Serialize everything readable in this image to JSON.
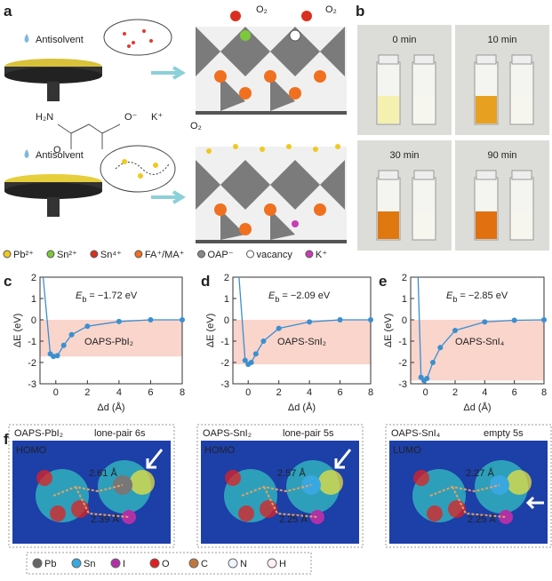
{
  "panels": [
    "a",
    "b",
    "c",
    "d",
    "e",
    "f"
  ],
  "panel_a": {
    "antisolvent_top": "Antisolvent",
    "antisolvent_bottom": "Antisolvent",
    "h2n": "H₂N",
    "o": "O",
    "o_minus": "O⁻",
    "k_plus": "K⁺",
    "o2_1": "O₂",
    "o2_2": "O₂",
    "o2_3": "O₂",
    "legend": [
      "Pb²⁺",
      "Sn²⁺",
      "Sn⁴⁺",
      "FA⁺/MA⁺",
      "OAP⁻",
      "vacancy",
      "K⁺"
    ]
  },
  "panel_b": {
    "times": [
      "0 min",
      "10 min",
      "30 min",
      "90 min"
    ]
  },
  "chart_data": [
    {
      "type": "line",
      "xlabel": "Δd (Å)",
      "ylabel": "ΔE (eV)",
      "eb_symbol": "E",
      "eb_subscript": "b",
      "eb_text": "= −1.72 eV",
      "eb": -1.72,
      "curve_label": "OAPS-PbI₂",
      "x": [
        -0.8,
        -0.35,
        -0.15,
        0.1,
        0.5,
        1,
        2,
        4,
        6,
        8
      ],
      "values": [
        2,
        -1.6,
        -1.72,
        -1.68,
        -1.2,
        -0.7,
        -0.3,
        -0.08,
        0,
        0
      ],
      "color": "#3a8fd0",
      "xlim": [
        -1,
        8
      ],
      "xticks": [
        0,
        2,
        4,
        6,
        8
      ],
      "ylim": [
        -3,
        2
      ],
      "yticks": [
        -3,
        -2,
        -1,
        0,
        1,
        2
      ]
    },
    {
      "type": "line",
      "xlabel": "Δd (Å)",
      "ylabel": "ΔE (eV)",
      "eb_symbol": "E",
      "eb_subscript": "b",
      "eb_text": "= −2.09 eV",
      "eb": -2.09,
      "curve_label": "OAPS-SnI₂",
      "x": [
        -0.6,
        -0.2,
        0,
        0.2,
        0.5,
        1,
        2,
        4,
        6,
        8
      ],
      "values": [
        2,
        -1.9,
        -2.09,
        -2.0,
        -1.6,
        -1.0,
        -0.4,
        -0.1,
        0,
        0
      ],
      "color": "#3a8fd0",
      "xlim": [
        -1,
        8
      ],
      "xticks": [
        0,
        2,
        4,
        6,
        8
      ],
      "ylim": [
        -3,
        2
      ],
      "yticks": [
        -3,
        -2,
        -1,
        0,
        1,
        2
      ]
    },
    {
      "type": "line",
      "xlabel": "Δd (Å)",
      "ylabel": "ΔE (eV)",
      "eb_symbol": "E",
      "eb_subscript": "b",
      "eb_text": "= −2.85 eV",
      "eb": -2.85,
      "curve_label": "OAPS-SnI₄",
      "x": [
        -0.5,
        -0.3,
        -0.1,
        0.1,
        0.5,
        1,
        2,
        4,
        6,
        8
      ],
      "values": [
        2,
        -2.7,
        -2.85,
        -2.75,
        -2.0,
        -1.3,
        -0.5,
        -0.1,
        -0.02,
        0
      ],
      "color": "#3a8fd0",
      "xlim": [
        -1,
        8
      ],
      "xticks": [
        0,
        2,
        4,
        6,
        8
      ],
      "ylim": [
        -3,
        2
      ],
      "yticks": [
        -3,
        -2,
        -1,
        0,
        1,
        2
      ]
    }
  ],
  "panel_f": {
    "boxes": [
      {
        "name": "OAPS-PbI₂",
        "note": "lone-pair 6s",
        "orbital": "HOMO",
        "d1": "2.61 Å",
        "d2": "2.39 Å"
      },
      {
        "name": "OAPS-SnI₂",
        "note": "lone-pair 5s",
        "orbital": "HOMO",
        "d1": "2.57 Å",
        "d2": "2.25 Å"
      },
      {
        "name": "OAPS-SnI₄",
        "note": "empty 5s",
        "orbital": "LUMO",
        "d1": "2.27 Å",
        "d2": "2.25 Å"
      }
    ],
    "legend": [
      "Pb",
      "Sn",
      "I",
      "O",
      "C",
      "N",
      "H"
    ]
  }
}
